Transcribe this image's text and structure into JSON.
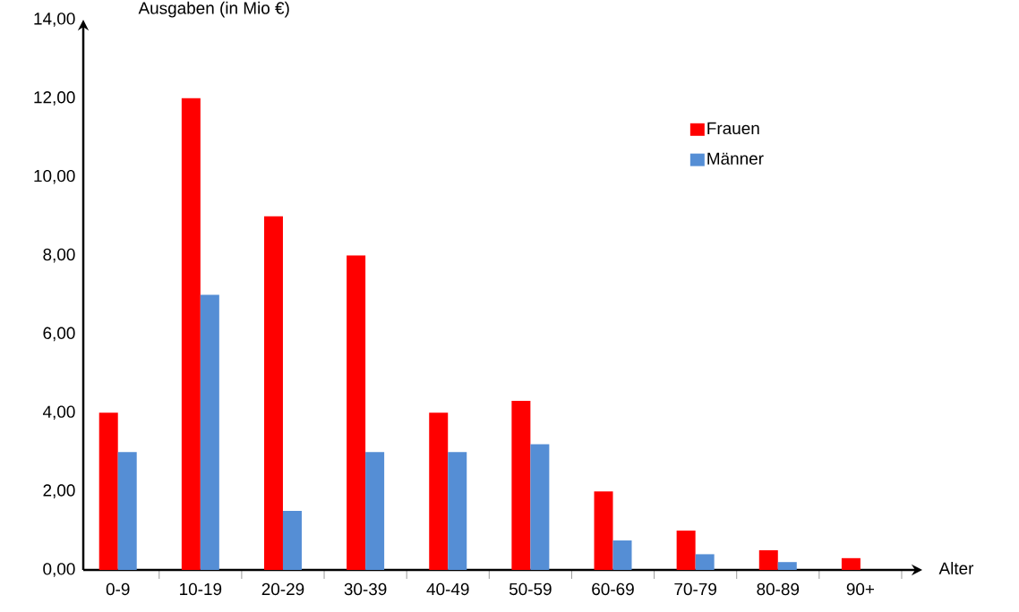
{
  "chart_data": {
    "type": "bar",
    "xlabel": "Alter",
    "ylabel": "Ausgaben (in Mio €)",
    "categories": [
      "0-9",
      "10-19",
      "20-29",
      "30-39",
      "40-49",
      "50-59",
      "60-69",
      "70-79",
      "80-89",
      "90+"
    ],
    "series": [
      {
        "name": "Frauen",
        "color": "#ff0000",
        "values": [
          4,
          12,
          9,
          8,
          4,
          4.3,
          2,
          1,
          0.5,
          0.3
        ]
      },
      {
        "name": "Männer",
        "color": "#558ed5",
        "values": [
          3,
          7,
          1.5,
          3,
          3,
          3.2,
          0.75,
          0.4,
          0.2,
          null
        ]
      }
    ],
    "ylim": [
      0,
      14
    ],
    "yticks": [
      {
        "value": 0,
        "label": "0,00"
      },
      {
        "value": 2,
        "label": "2,00"
      },
      {
        "value": 4,
        "label": "4,00"
      },
      {
        "value": 6,
        "label": "6,00"
      },
      {
        "value": 8,
        "label": "8,00"
      },
      {
        "value": 10,
        "label": "10,00"
      },
      {
        "value": 12,
        "label": "12,00"
      },
      {
        "value": 14,
        "label": "14,00"
      }
    ],
    "grid": false,
    "legend": "top right"
  }
}
